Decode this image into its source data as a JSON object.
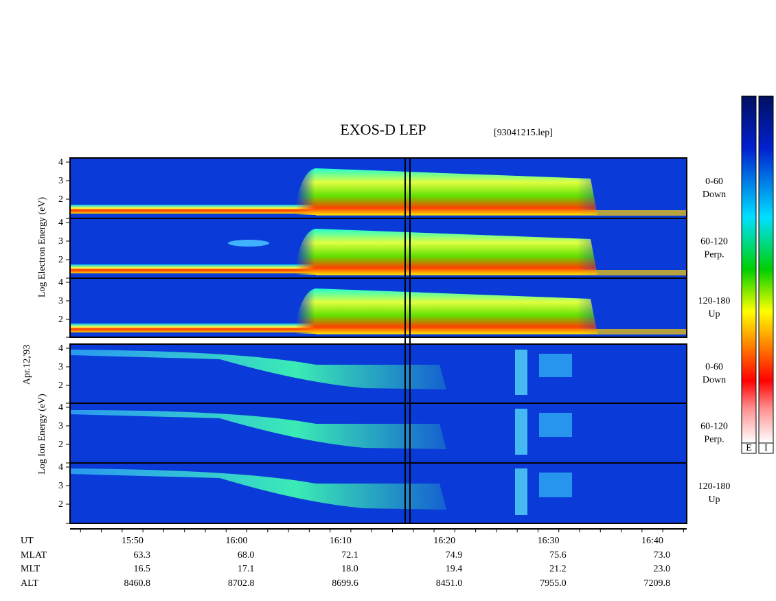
{
  "header": {
    "title": "EXOS-D LEP",
    "file": "[93041215.lep]"
  },
  "side_labels": {
    "date": "Apr.12,'93",
    "electron_axis": "Log Electron Energy (eV)",
    "ion_axis": "Log Ion Energy (eV)"
  },
  "panels": [
    {
      "pitch": [
        "0-60",
        "Down"
      ],
      "yticks": [
        "4",
        "3",
        "2"
      ]
    },
    {
      "pitch": [
        "60-120",
        "Perp."
      ],
      "yticks": [
        "4",
        "3",
        "2"
      ]
    },
    {
      "pitch": [
        "120-180",
        "Up"
      ],
      "yticks": [
        "4",
        "3",
        "2"
      ]
    },
    {
      "pitch": [
        "0-60",
        "Down"
      ],
      "yticks": [
        "4",
        "3",
        "2"
      ]
    },
    {
      "pitch": [
        "60-120",
        "Perp."
      ],
      "yticks": [
        "4",
        "3",
        "2"
      ]
    },
    {
      "pitch": [
        "120-180",
        "Up"
      ],
      "yticks": [
        "4",
        "3",
        "2"
      ]
    }
  ],
  "ephemeris": {
    "rows": [
      {
        "name": "UT",
        "values": [
          "15:50",
          "16:00",
          "16:10",
          "16:20",
          "16:30",
          "16:40"
        ]
      },
      {
        "name": "MLAT",
        "values": [
          "63.3",
          "68.0",
          "72.1",
          "74.9",
          "75.6",
          "73.0"
        ]
      },
      {
        "name": "MLT",
        "values": [
          "16.5",
          "17.1",
          "18.0",
          "19.4",
          "21.2",
          "23.0"
        ]
      },
      {
        "name": "ALT",
        "values": [
          "8460.8",
          "8702.8",
          "8699.6",
          "8451.0",
          "7955.0",
          "7209.8"
        ]
      }
    ]
  },
  "colorbars": [
    "E",
    "I"
  ]
}
